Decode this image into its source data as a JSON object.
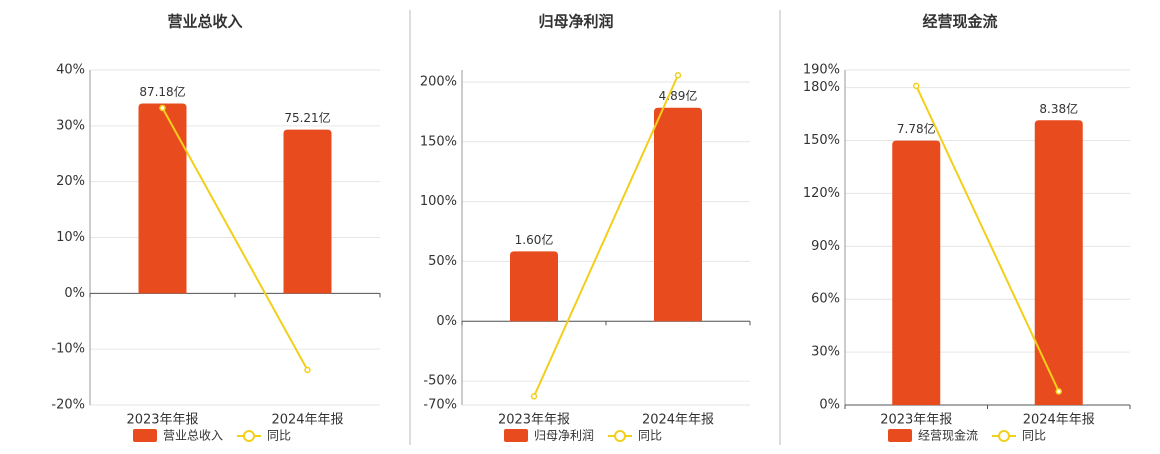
{
  "chart_data": [
    {
      "type": "bar",
      "title": "营业总收入",
      "categories": [
        "2023年年报",
        "2024年年报"
      ],
      "ylim": [
        -20,
        40
      ],
      "yticks": [
        {
          "value": -20,
          "label": "-20%"
        },
        {
          "value": -10,
          "label": "-10%"
        },
        {
          "value": 0,
          "label": "0%"
        },
        {
          "value": 10,
          "label": "10%"
        },
        {
          "value": 20,
          "label": "20%"
        },
        {
          "value": 30,
          "label": "30%"
        },
        {
          "value": 40,
          "label": "40%"
        }
      ],
      "grid": true,
      "series": [
        {
          "name": "营业总收入",
          "type": "bar",
          "color": "#e84c1e",
          "values": [
            87.18,
            75.21
          ],
          "value_labels": [
            "87.18亿",
            "75.21亿"
          ]
        },
        {
          "name": "同比",
          "type": "line",
          "color": "#f2cf1a",
          "values": [
            33.2,
            -13.73
          ]
        }
      ]
    },
    {
      "type": "bar",
      "title": "归母净利润",
      "categories": [
        "2023年年报",
        "2024年年报"
      ],
      "ylim": [
        -70,
        210
      ],
      "yticks": [
        {
          "value": -70,
          "label": "-70%"
        },
        {
          "value": -50,
          "label": "-50%"
        },
        {
          "value": 0,
          "label": "0%"
        },
        {
          "value": 50,
          "label": "50%"
        },
        {
          "value": 100,
          "label": "100%"
        },
        {
          "value": 150,
          "label": "150%"
        },
        {
          "value": 200,
          "label": "200%"
        }
      ],
      "grid": true,
      "series": [
        {
          "name": "归母净利润",
          "type": "bar",
          "color": "#e84c1e",
          "values": [
            1.6,
            4.89
          ],
          "value_labels": [
            "1.60亿",
            "4.89亿"
          ]
        },
        {
          "name": "同比",
          "type": "line",
          "color": "#f2cf1a",
          "values": [
            -62.8,
            205.6
          ]
        }
      ]
    },
    {
      "type": "bar",
      "title": "经营现金流",
      "categories": [
        "2023年年报",
        "2024年年报"
      ],
      "ylim": [
        0,
        190
      ],
      "yticks": [
        {
          "value": 0,
          "label": "0%"
        },
        {
          "value": 30,
          "label": "30%"
        },
        {
          "value": 60,
          "label": "60%"
        },
        {
          "value": 90,
          "label": "90%"
        },
        {
          "value": 120,
          "label": "120%"
        },
        {
          "value": 150,
          "label": "150%"
        },
        {
          "value": 180,
          "label": "180%"
        },
        {
          "value": 190,
          "label": "190%"
        }
      ],
      "grid": true,
      "series": [
        {
          "name": "经营现金流",
          "type": "bar",
          "color": "#e84c1e",
          "values": [
            7.78,
            8.38
          ],
          "value_labels": [
            "7.78亿",
            "8.38亿"
          ]
        },
        {
          "name": "同比",
          "type": "line",
          "color": "#f2cf1a",
          "values": [
            181,
            7.71
          ]
        }
      ]
    }
  ]
}
